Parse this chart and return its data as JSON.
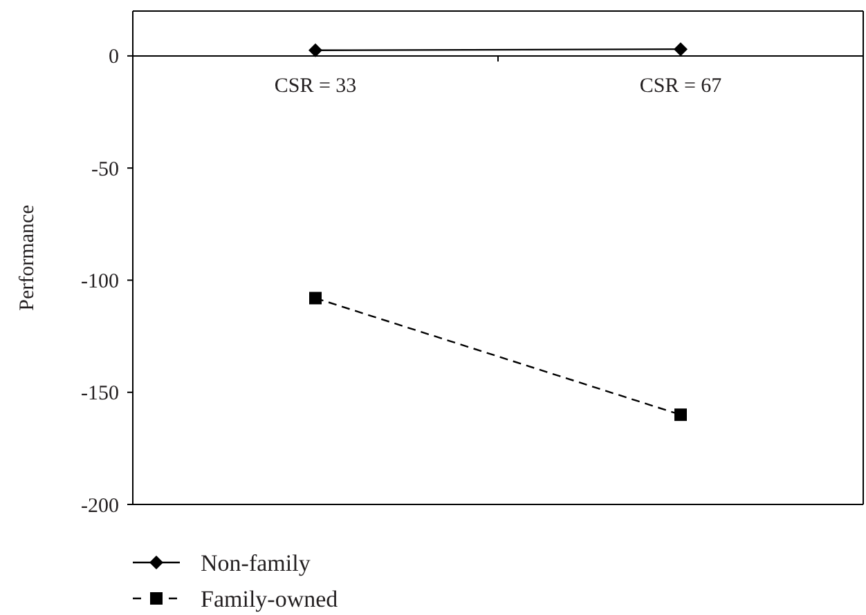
{
  "chart_data": {
    "type": "line",
    "ylabel": "Performance",
    "categories": [
      "CSR = 33",
      "CSR = 67"
    ],
    "ylim": [
      -200,
      20
    ],
    "yticks": [
      0,
      -50,
      -100,
      -150,
      -200
    ],
    "grid": false,
    "legend": "bottom left",
    "series": [
      {
        "name": "Non-family",
        "color": "#000000",
        "values": [
          2.5,
          3
        ],
        "marker": "diamond",
        "line_style": "solid"
      },
      {
        "name": "Family-owned",
        "color": "#000000",
        "values": [
          -108,
          -160
        ],
        "marker": "square",
        "line_style": "dashed"
      }
    ]
  }
}
